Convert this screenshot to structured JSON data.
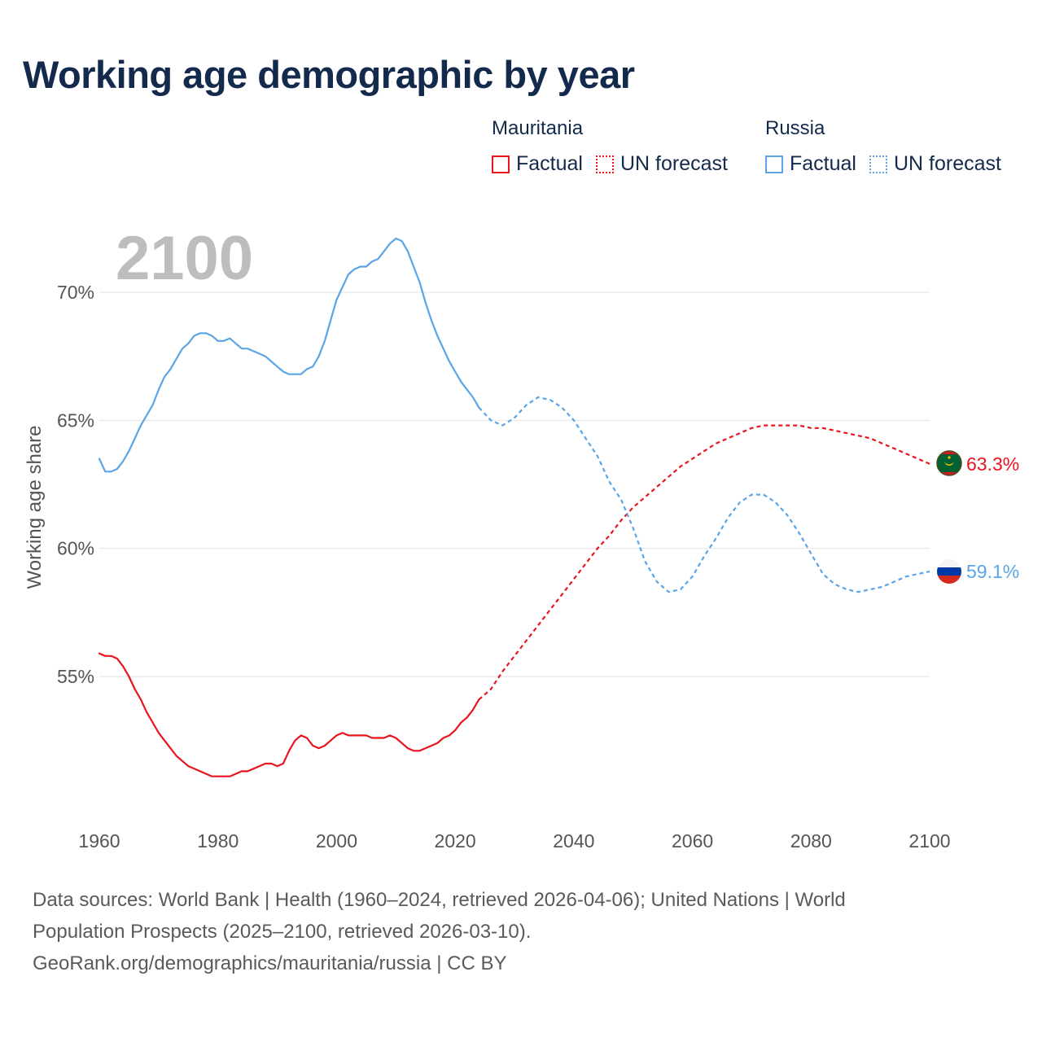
{
  "title": "Working age demographic by year",
  "legend": {
    "mauritania": {
      "country": "Mauritania",
      "factual": "Factual",
      "forecast": "UN forecast"
    },
    "russia": {
      "country": "Russia",
      "factual": "Factual",
      "forecast": "UN forecast"
    }
  },
  "colors": {
    "mauritania": "#e8141e",
    "russia": "#5ba4e6",
    "title": "#142a4d"
  },
  "footer": {
    "line1": "Data sources: World Bank | Health (1960–2024, retrieved 2026-04-06); United Nations | World",
    "line2": "Population Prospects (2025–2100, retrieved 2026-03-10).",
    "line3": "GeoRank.org/demographics/mauritania/russia | CC BY"
  },
  "chart_data": {
    "type": "line",
    "title": "Working age demographic by year",
    "ylabel": "Working age share",
    "xlabel": "",
    "year_label": "2100",
    "xlim": [
      1960,
      2100
    ],
    "ylim": [
      49.5,
      74
    ],
    "x_ticks": [
      1960,
      1980,
      2000,
      2020,
      2040,
      2060,
      2080,
      2100
    ],
    "x_tick_labels": [
      "1960",
      "1980",
      "2000",
      "2020",
      "2040",
      "2060",
      "2080",
      "2100"
    ],
    "y_ticks": [
      55,
      60,
      65,
      70
    ],
    "y_tick_labels": [
      "55%",
      "60%",
      "65%",
      "70%"
    ],
    "grid": true,
    "series": [
      {
        "name": "Mauritania",
        "end_label": "63.3%",
        "flag": "mauritania-flag",
        "factual": {
          "x": [
            1960,
            1961,
            1962,
            1963,
            1964,
            1965,
            1966,
            1967,
            1968,
            1969,
            1970,
            1971,
            1972,
            1973,
            1974,
            1975,
            1976,
            1977,
            1978,
            1979,
            1980,
            1981,
            1982,
            1983,
            1984,
            1985,
            1986,
            1987,
            1988,
            1989,
            1990,
            1991,
            1992,
            1993,
            1994,
            1995,
            1996,
            1997,
            1998,
            1999,
            2000,
            2001,
            2002,
            2003,
            2004,
            2005,
            2006,
            2007,
            2008,
            2009,
            2010,
            2011,
            2012,
            2013,
            2014,
            2015,
            2016,
            2017,
            2018,
            2019,
            2020,
            2021,
            2022,
            2023,
            2024
          ],
          "y": [
            55.9,
            55.8,
            55.8,
            55.7,
            55.4,
            55.0,
            54.5,
            54.1,
            53.6,
            53.2,
            52.8,
            52.5,
            52.2,
            51.9,
            51.7,
            51.5,
            51.4,
            51.3,
            51.2,
            51.1,
            51.1,
            51.1,
            51.1,
            51.2,
            51.3,
            51.3,
            51.4,
            51.5,
            51.6,
            51.6,
            51.5,
            51.6,
            52.1,
            52.5,
            52.7,
            52.6,
            52.3,
            52.2,
            52.3,
            52.5,
            52.7,
            52.8,
            52.7,
            52.7,
            52.7,
            52.7,
            52.6,
            52.6,
            52.6,
            52.7,
            52.6,
            52.4,
            52.2,
            52.1,
            52.1,
            52.2,
            52.3,
            52.4,
            52.6,
            52.7,
            52.9,
            53.2,
            53.4,
            53.7,
            54.1
          ]
        },
        "forecast": {
          "x": [
            2024,
            2026,
            2028,
            2030,
            2032,
            2034,
            2036,
            2038,
            2040,
            2042,
            2044,
            2046,
            2048,
            2050,
            2052,
            2054,
            2056,
            2058,
            2060,
            2062,
            2064,
            2066,
            2068,
            2070,
            2072,
            2074,
            2076,
            2078,
            2080,
            2082,
            2084,
            2086,
            2088,
            2090,
            2092,
            2094,
            2096,
            2098,
            2100
          ],
          "y": [
            54.1,
            54.5,
            55.2,
            55.8,
            56.4,
            57.0,
            57.6,
            58.2,
            58.8,
            59.4,
            60.0,
            60.5,
            61.1,
            61.6,
            62.0,
            62.4,
            62.8,
            63.2,
            63.5,
            63.8,
            64.1,
            64.3,
            64.5,
            64.7,
            64.8,
            64.8,
            64.8,
            64.8,
            64.7,
            64.7,
            64.6,
            64.5,
            64.4,
            64.3,
            64.1,
            63.9,
            63.7,
            63.5,
            63.3
          ]
        }
      },
      {
        "name": "Russia",
        "end_label": "59.1%",
        "flag": "russia-flag",
        "factual": {
          "x": [
            1960,
            1961,
            1962,
            1963,
            1964,
            1965,
            1966,
            1967,
            1968,
            1969,
            1970,
            1971,
            1972,
            1973,
            1974,
            1975,
            1976,
            1977,
            1978,
            1979,
            1980,
            1981,
            1982,
            1983,
            1984,
            1985,
            1986,
            1987,
            1988,
            1989,
            1990,
            1991,
            1992,
            1993,
            1994,
            1995,
            1996,
            1997,
            1998,
            1999,
            2000,
            2001,
            2002,
            2003,
            2004,
            2005,
            2006,
            2007,
            2008,
            2009,
            2010,
            2011,
            2012,
            2013,
            2014,
            2015,
            2016,
            2017,
            2018,
            2019,
            2020,
            2021,
            2022,
            2023,
            2024
          ],
          "y": [
            63.5,
            63.0,
            63.0,
            63.1,
            63.4,
            63.8,
            64.3,
            64.8,
            65.2,
            65.6,
            66.2,
            66.7,
            67.0,
            67.4,
            67.8,
            68.0,
            68.3,
            68.4,
            68.4,
            68.3,
            68.1,
            68.1,
            68.2,
            68.0,
            67.8,
            67.8,
            67.7,
            67.6,
            67.5,
            67.3,
            67.1,
            66.9,
            66.8,
            66.8,
            66.8,
            67.0,
            67.1,
            67.5,
            68.1,
            68.9,
            69.7,
            70.2,
            70.7,
            70.9,
            71.0,
            71.0,
            71.2,
            71.3,
            71.6,
            71.9,
            72.1,
            72.0,
            71.6,
            71.0,
            70.4,
            69.6,
            68.9,
            68.3,
            67.8,
            67.3,
            66.9,
            66.5,
            66.2,
            65.9,
            65.5
          ]
        },
        "forecast": {
          "x": [
            2024,
            2026,
            2028,
            2030,
            2032,
            2034,
            2036,
            2038,
            2040,
            2042,
            2044,
            2046,
            2048,
            2050,
            2052,
            2054,
            2056,
            2058,
            2060,
            2062,
            2064,
            2066,
            2068,
            2070,
            2072,
            2074,
            2076,
            2078,
            2080,
            2082,
            2084,
            2086,
            2088,
            2090,
            2092,
            2094,
            2096,
            2098,
            2100
          ],
          "y": [
            65.5,
            65.0,
            64.8,
            65.1,
            65.6,
            65.9,
            65.8,
            65.5,
            65.0,
            64.3,
            63.6,
            62.6,
            61.9,
            60.8,
            59.5,
            58.7,
            58.3,
            58.4,
            58.9,
            59.7,
            60.4,
            61.2,
            61.8,
            62.1,
            62.1,
            61.8,
            61.3,
            60.6,
            59.8,
            59.0,
            58.6,
            58.4,
            58.3,
            58.4,
            58.5,
            58.7,
            58.9,
            59.0,
            59.1
          ]
        }
      }
    ]
  }
}
